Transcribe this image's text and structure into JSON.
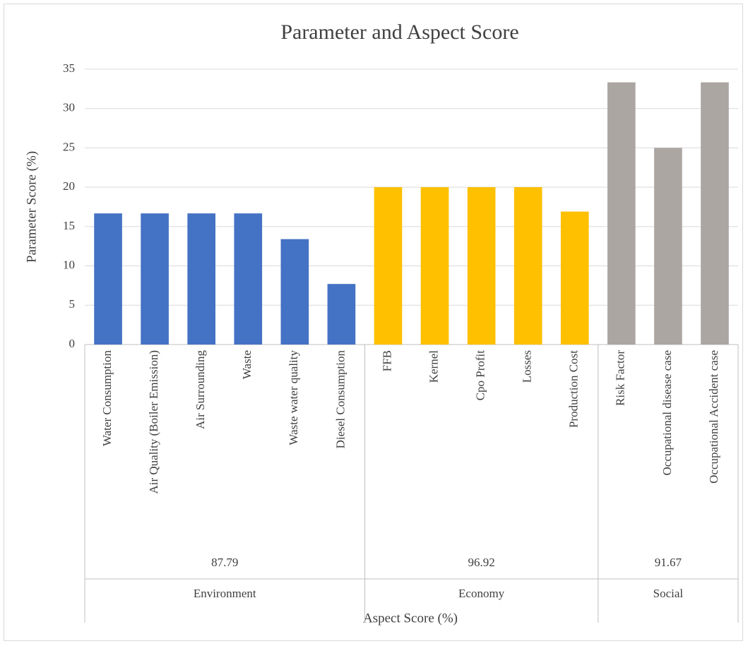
{
  "chart_data": {
    "type": "bar",
    "title": "Parameter and Aspect Score",
    "y_label": "Parameter Score (%)",
    "x_label": "Aspect Score (%)",
    "ylim": [
      0,
      35
    ],
    "yticks": [
      0,
      5,
      10,
      15,
      20,
      25,
      30,
      35
    ],
    "grid": true,
    "groups": [
      {
        "name": "Environment",
        "score": 87.79,
        "color": "#4472c4",
        "categories": [
          "Water Consumption",
          "Air Quality (Boiler Emission)",
          "Air Surrounding",
          "Waste",
          "Waste water quality",
          "Diesel Consumption"
        ],
        "values": [
          16.67,
          16.67,
          16.67,
          16.67,
          13.4,
          7.7
        ]
      },
      {
        "name": "Economy",
        "score": 96.92,
        "color": "#ffc000",
        "categories": [
          "FFB",
          "Kernel",
          "Cpo Profit",
          "Losses",
          "Production Cost"
        ],
        "values": [
          20,
          20,
          20,
          20,
          16.9
        ]
      },
      {
        "name": "Social",
        "score": 91.67,
        "color": "#aca6a3",
        "categories": [
          "Risk Factor",
          "Occupational disease case",
          "Occupational Accident case"
        ],
        "values": [
          33.33,
          25,
          33.33
        ]
      }
    ]
  }
}
